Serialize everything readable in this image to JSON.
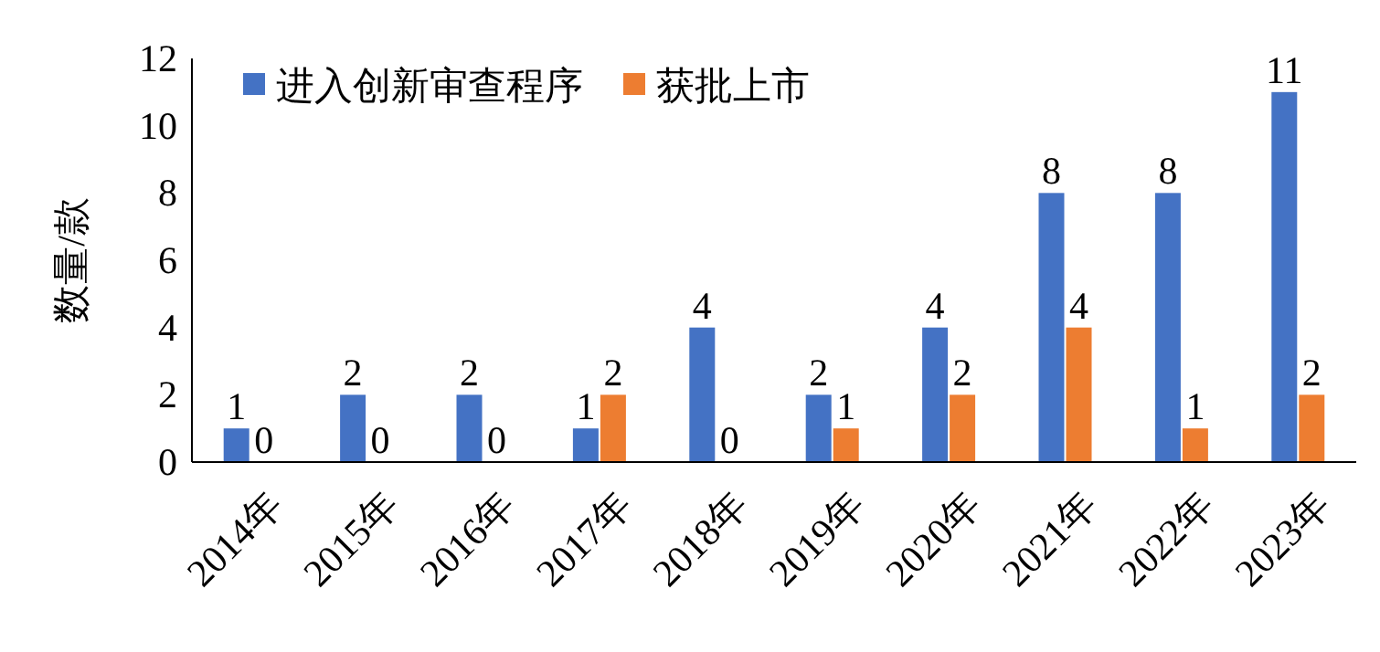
{
  "chart_data": {
    "type": "bar",
    "ylabel": "数量/款",
    "categories": [
      "2014年",
      "2015年",
      "2016年",
      "2017年",
      "2018年",
      "2019年",
      "2020年",
      "2021年",
      "2022年",
      "2023年"
    ],
    "series": [
      {
        "name": "进入创新审查程序",
        "color": "#4472c4",
        "values": [
          1,
          2,
          2,
          1,
          4,
          2,
          4,
          8,
          8,
          11
        ]
      },
      {
        "name": "获批上市",
        "color": "#ed7d31",
        "values": [
          0,
          0,
          0,
          2,
          0,
          1,
          2,
          4,
          1,
          2
        ]
      }
    ],
    "ylim": [
      0,
      12
    ],
    "yticks": [
      0,
      2,
      4,
      6,
      8,
      10,
      12
    ],
    "data_labels": true,
    "legend": "top left",
    "grid": false
  }
}
